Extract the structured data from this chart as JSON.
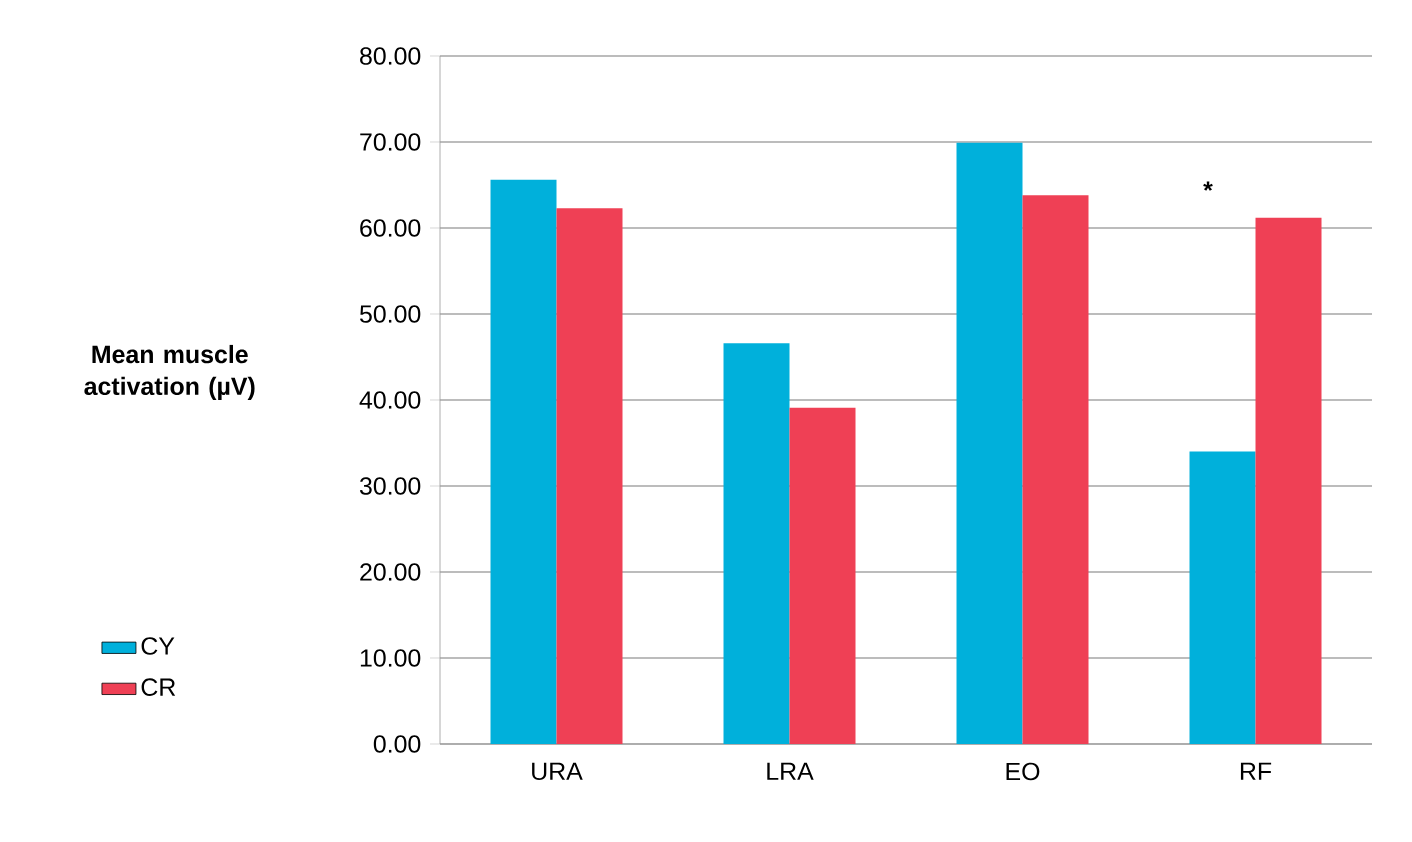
{
  "chart_data": {
    "type": "bar",
    "ylabel": "Mean muscle activation (µV)",
    "categories": [
      "URA",
      "LRA",
      "EO",
      "RF"
    ],
    "series": [
      {
        "name": "CY",
        "color": "#00b0db",
        "values": [
          65.6,
          46.6,
          69.9,
          34.0
        ]
      },
      {
        "name": "CR",
        "color": "#ef4055",
        "values": [
          62.3,
          39.1,
          63.8,
          61.2
        ]
      }
    ],
    "ylim": [
      0,
      80
    ],
    "yticks": [
      {
        "value": 0,
        "label": "0.00"
      },
      {
        "value": 10,
        "label": "10.00"
      },
      {
        "value": 20,
        "label": "20.00"
      },
      {
        "value": 30,
        "label": "30.00"
      },
      {
        "value": 40,
        "label": "40.00"
      },
      {
        "value": 50,
        "label": "50.00"
      },
      {
        "value": 60,
        "label": "60.00"
      },
      {
        "value": 70,
        "label": "70.00"
      },
      {
        "value": 80,
        "label": "80.00"
      }
    ],
    "grid": "y",
    "legend": "left",
    "annotations": [
      "*"
    ]
  }
}
